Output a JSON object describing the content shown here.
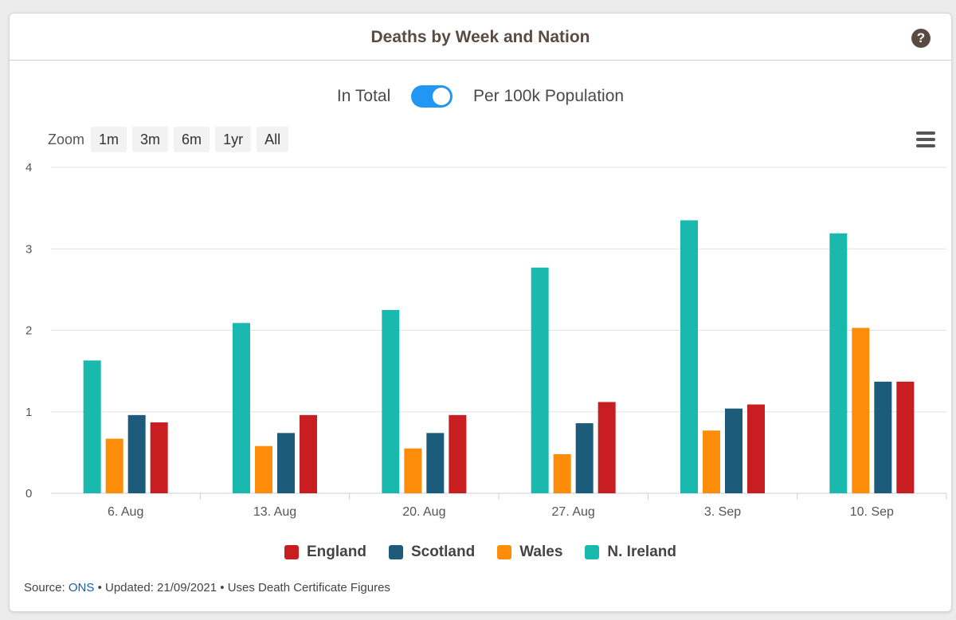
{
  "header": {
    "title": "Deaths by Week and Nation",
    "help_icon": "question-circle-icon"
  },
  "toggle": {
    "left_label": "In Total",
    "right_label": "Per 100k Population",
    "state": "per_100k",
    "color": "#2196f3"
  },
  "zoom": {
    "label": "Zoom",
    "buttons": [
      "1m",
      "3m",
      "6m",
      "1yr",
      "All"
    ]
  },
  "menu_icon": "hamburger-menu-icon",
  "chart_data": {
    "type": "bar",
    "title": "Deaths by Week and Nation",
    "xlabel": "",
    "ylabel": "",
    "ylim": [
      0,
      4
    ],
    "yticks": [
      "0",
      "1",
      "2",
      "3",
      "4"
    ],
    "grid": true,
    "legend_position": "bottom-center",
    "categories": [
      "6. Aug",
      "13. Aug",
      "20. Aug",
      "27. Aug",
      "3. Sep",
      "10. Sep"
    ],
    "series": [
      {
        "name": "N. Ireland",
        "color": "#19b9ae",
        "values": [
          1.63,
          2.09,
          2.25,
          2.77,
          3.35,
          3.19
        ]
      },
      {
        "name": "Wales",
        "color": "#fd8c08",
        "values": [
          0.67,
          0.58,
          0.55,
          0.48,
          0.77,
          2.03
        ]
      },
      {
        "name": "Scotland",
        "color": "#1c5c7a",
        "values": [
          0.96,
          0.74,
          0.74,
          0.86,
          1.04,
          1.37
        ]
      },
      {
        "name": "England",
        "color": "#c81e21",
        "values": [
          0.87,
          0.96,
          0.96,
          1.12,
          1.09,
          1.37
        ]
      }
    ],
    "legend_order": [
      "England",
      "Scotland",
      "Wales",
      "N. Ireland"
    ]
  },
  "footer": {
    "source_label": "Source:",
    "source_link": "ONS",
    "rest": "• Updated: 21/09/2021 • Uses Death Certificate Figures"
  }
}
